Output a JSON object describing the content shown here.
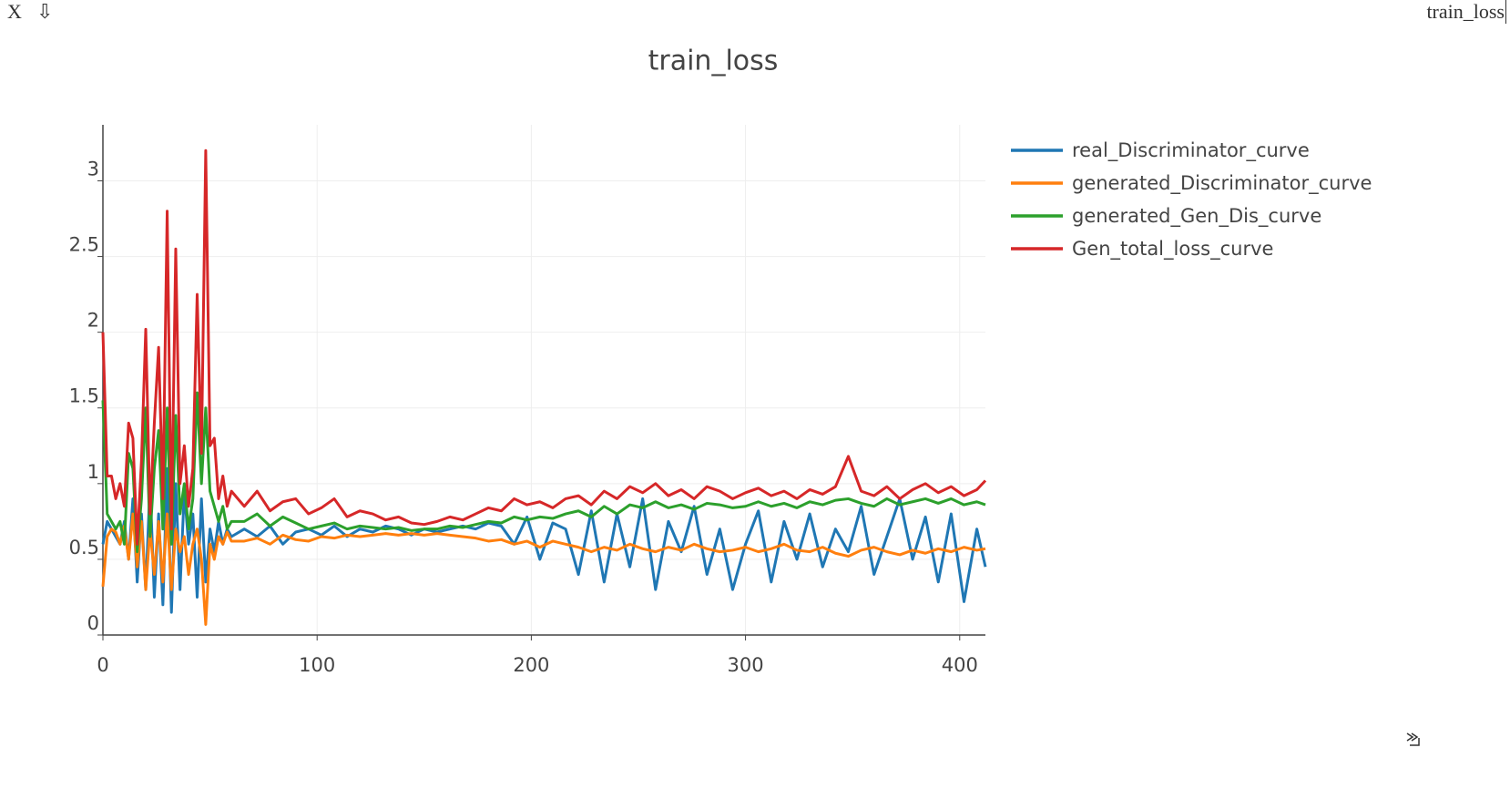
{
  "window": {
    "close": "X",
    "download": "⇩",
    "title": "train_loss"
  },
  "chart_data": {
    "type": "line",
    "title": "train_loss",
    "x": [
      0,
      2,
      4,
      6,
      8,
      10,
      12,
      14,
      16,
      18,
      20,
      22,
      24,
      26,
      28,
      30,
      32,
      34,
      36,
      38,
      40,
      42,
      44,
      46,
      48,
      50,
      52,
      54,
      56,
      58,
      60,
      66,
      72,
      78,
      84,
      90,
      96,
      102,
      108,
      114,
      120,
      126,
      132,
      138,
      144,
      150,
      156,
      162,
      168,
      174,
      180,
      186,
      192,
      198,
      204,
      210,
      216,
      222,
      228,
      234,
      240,
      246,
      252,
      258,
      264,
      270,
      276,
      282,
      288,
      294,
      300,
      306,
      312,
      318,
      324,
      330,
      336,
      342,
      348,
      354,
      360,
      366,
      372,
      378,
      384,
      390,
      396,
      402,
      408,
      412
    ],
    "series": [
      {
        "name": "real_Discriminator_curve",
        "color": "#1f77b4",
        "values": [
          0.6,
          0.75,
          0.7,
          0.65,
          0.6,
          0.75,
          0.5,
          0.9,
          0.35,
          0.8,
          0.3,
          1.0,
          0.25,
          0.8,
          0.2,
          1.1,
          0.15,
          1.0,
          0.3,
          0.95,
          0.6,
          0.8,
          0.25,
          0.9,
          0.35,
          0.7,
          0.55,
          0.75,
          0.6,
          0.7,
          0.65,
          0.7,
          0.65,
          0.72,
          0.6,
          0.68,
          0.7,
          0.66,
          0.72,
          0.65,
          0.7,
          0.68,
          0.72,
          0.7,
          0.66,
          0.7,
          0.68,
          0.7,
          0.72,
          0.7,
          0.74,
          0.72,
          0.6,
          0.78,
          0.5,
          0.74,
          0.7,
          0.4,
          0.82,
          0.35,
          0.8,
          0.45,
          0.9,
          0.3,
          0.75,
          0.55,
          0.85,
          0.4,
          0.7,
          0.3,
          0.6,
          0.82,
          0.35,
          0.75,
          0.5,
          0.8,
          0.45,
          0.7,
          0.55,
          0.85,
          0.4,
          0.65,
          0.9,
          0.5,
          0.78,
          0.35,
          0.8,
          0.22,
          0.7,
          0.45
        ]
      },
      {
        "name": "generated_Discriminator_curve",
        "color": "#ff7f0e",
        "values": [
          0.32,
          0.65,
          0.7,
          0.68,
          0.6,
          0.72,
          0.5,
          0.8,
          0.45,
          0.75,
          0.3,
          0.7,
          0.4,
          0.75,
          0.35,
          0.8,
          0.3,
          0.7,
          0.55,
          0.65,
          0.4,
          0.6,
          0.7,
          0.5,
          0.07,
          0.6,
          0.5,
          0.65,
          0.6,
          0.68,
          0.62,
          0.62,
          0.64,
          0.6,
          0.66,
          0.63,
          0.62,
          0.65,
          0.64,
          0.66,
          0.65,
          0.66,
          0.67,
          0.66,
          0.67,
          0.66,
          0.67,
          0.66,
          0.65,
          0.64,
          0.62,
          0.63,
          0.6,
          0.62,
          0.58,
          0.62,
          0.6,
          0.58,
          0.55,
          0.58,
          0.56,
          0.6,
          0.57,
          0.55,
          0.58,
          0.56,
          0.6,
          0.57,
          0.55,
          0.56,
          0.58,
          0.55,
          0.57,
          0.6,
          0.56,
          0.55,
          0.58,
          0.54,
          0.52,
          0.56,
          0.58,
          0.55,
          0.53,
          0.56,
          0.54,
          0.57,
          0.55,
          0.58,
          0.56,
          0.57
        ]
      },
      {
        "name": "generated_Gen_Dis_curve",
        "color": "#2ca02c",
        "values": [
          1.55,
          0.8,
          0.75,
          0.7,
          0.75,
          0.6,
          1.2,
          1.1,
          0.55,
          0.9,
          1.5,
          0.65,
          1.1,
          1.35,
          0.7,
          1.5,
          0.6,
          1.45,
          0.8,
          1.0,
          0.7,
          0.9,
          1.6,
          1.0,
          1.5,
          0.95,
          0.85,
          0.75,
          0.85,
          0.7,
          0.75,
          0.75,
          0.8,
          0.72,
          0.78,
          0.74,
          0.7,
          0.72,
          0.74,
          0.7,
          0.72,
          0.71,
          0.7,
          0.71,
          0.69,
          0.7,
          0.7,
          0.72,
          0.71,
          0.73,
          0.75,
          0.74,
          0.78,
          0.76,
          0.78,
          0.77,
          0.8,
          0.82,
          0.78,
          0.85,
          0.8,
          0.86,
          0.84,
          0.88,
          0.84,
          0.86,
          0.83,
          0.87,
          0.86,
          0.84,
          0.85,
          0.88,
          0.85,
          0.87,
          0.84,
          0.88,
          0.86,
          0.89,
          0.9,
          0.87,
          0.85,
          0.9,
          0.86,
          0.88,
          0.9,
          0.87,
          0.9,
          0.86,
          0.88,
          0.86
        ]
      },
      {
        "name": "Gen_total_loss_curve",
        "color": "#d62728",
        "values": [
          2.0,
          1.05,
          1.05,
          0.9,
          1.0,
          0.85,
          1.4,
          1.3,
          0.6,
          1.15,
          2.02,
          0.8,
          1.4,
          1.9,
          0.9,
          2.8,
          0.7,
          2.55,
          1.0,
          1.25,
          0.85,
          1.1,
          2.25,
          1.2,
          3.2,
          1.25,
          1.3,
          0.9,
          1.05,
          0.85,
          0.95,
          0.85,
          0.95,
          0.82,
          0.88,
          0.9,
          0.8,
          0.84,
          0.9,
          0.78,
          0.82,
          0.8,
          0.76,
          0.78,
          0.74,
          0.73,
          0.75,
          0.78,
          0.76,
          0.8,
          0.84,
          0.82,
          0.9,
          0.86,
          0.88,
          0.84,
          0.9,
          0.92,
          0.86,
          0.95,
          0.9,
          0.98,
          0.94,
          1.0,
          0.92,
          0.96,
          0.9,
          0.98,
          0.95,
          0.9,
          0.94,
          0.97,
          0.92,
          0.95,
          0.9,
          0.96,
          0.93,
          0.98,
          1.18,
          0.95,
          0.92,
          0.98,
          0.9,
          0.96,
          1.0,
          0.94,
          0.98,
          0.92,
          0.96,
          1.02
        ]
      }
    ],
    "xlim": [
      0,
      412
    ],
    "ylim": [
      0,
      3.37
    ],
    "xticks": [
      0,
      100,
      200,
      300,
      400
    ],
    "yticks": [
      0,
      0.5,
      1,
      1.5,
      2,
      2.5,
      3
    ],
    "grid": true,
    "legend": "right"
  }
}
